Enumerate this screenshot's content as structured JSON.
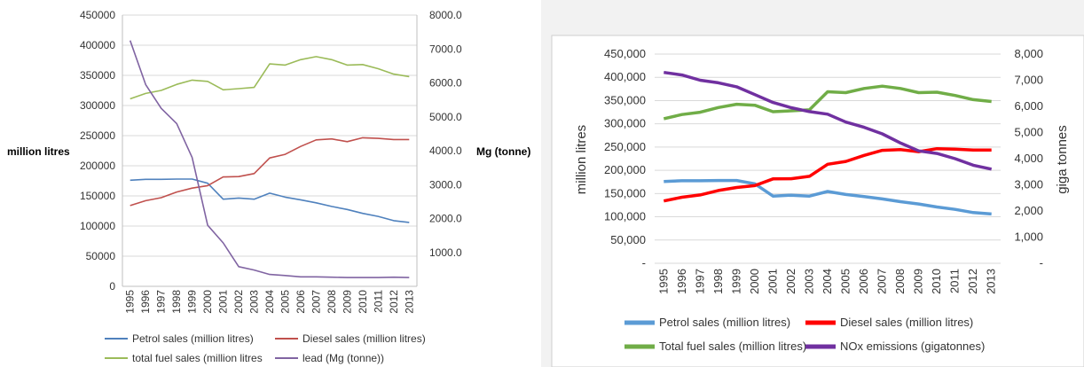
{
  "chart_data": [
    {
      "type": "line",
      "title": "",
      "x": [
        "1995",
        "1996",
        "1997",
        "1998",
        "1999",
        "2000",
        "2001",
        "2002",
        "2003",
        "2004",
        "2005",
        "2006",
        "2007",
        "2008",
        "2009",
        "2010",
        "2011",
        "2012",
        "2013"
      ],
      "ylabel": "million litres",
      "ylim": [
        0,
        450000
      ],
      "yticks": [
        "0",
        "50000",
        "100000",
        "150000",
        "200000",
        "250000",
        "300000",
        "350000",
        "400000",
        "450000"
      ],
      "y2label": "Mg (tonne)",
      "y2lim": [
        0,
        8000
      ],
      "y2ticks": [
        "",
        "1000.0",
        "2000.0",
        "3000.0",
        "4000.0",
        "5000.0",
        "6000.0",
        "7000.0",
        "8000.0"
      ],
      "grid": true,
      "legend_position": "bottom",
      "series": [
        {
          "name": "Petrol sales (million litres)",
          "axis": "left",
          "color": "#4f81bd",
          "values": [
            176000,
            177500,
            177500,
            178000,
            178000,
            171000,
            144500,
            146500,
            144500,
            154500,
            148000,
            143500,
            138500,
            132500,
            127500,
            121000,
            116000,
            109000,
            106000
          ]
        },
        {
          "name": "Diesel sales (million litres)",
          "axis": "left",
          "color": "#c0504d",
          "values": [
            134000,
            142000,
            147000,
            156500,
            163000,
            167000,
            181500,
            182000,
            187000,
            213000,
            219000,
            232000,
            243000,
            244500,
            240000,
            246500,
            245500,
            243500,
            243500
          ]
        },
        {
          "name": "total fuel sales (million litres",
          "axis": "left",
          "color": "#9bbb59",
          "values": [
            311000,
            320000,
            325000,
            335000,
            342000,
            340000,
            326000,
            328000,
            330000,
            369000,
            367000,
            376000,
            381000,
            376000,
            367000,
            368000,
            361000,
            352000,
            348000
          ]
        },
        {
          "name": "lead (Mg (tonne))",
          "axis": "right",
          "color": "#8064a2",
          "values": [
            7250,
            5950,
            5250,
            4800,
            3800,
            1800,
            1280,
            580,
            480,
            350,
            320,
            280,
            280,
            270,
            260,
            260,
            260,
            270,
            260
          ]
        }
      ]
    },
    {
      "type": "line",
      "title": "",
      "x": [
        "1995",
        "1996",
        "1997",
        "1998",
        "1999",
        "2000",
        "2001",
        "2002",
        "2003",
        "2004",
        "2005",
        "2006",
        "2007",
        "2008",
        "2009",
        "2010",
        "2011",
        "2012",
        "2013"
      ],
      "ylabel": "million litres",
      "ylim": [
        0,
        450000
      ],
      "yticks": [
        "-",
        "50,000",
        "100,000",
        "150,000",
        "200,000",
        "250,000",
        "300,000",
        "350,000",
        "400,000",
        "450,000"
      ],
      "y2label": "giga tonnes",
      "y2lim": [
        0,
        8000
      ],
      "y2ticks": [
        "-",
        "1,000",
        "2,000",
        "3,000",
        "4,000",
        "5,000",
        "6,000",
        "7,000",
        "8,000"
      ],
      "grid": true,
      "legend_position": "bottom",
      "series": [
        {
          "name": "Petrol sales (million litres)",
          "axis": "left",
          "color": "#5b9bd5",
          "values": [
            176000,
            177500,
            177500,
            178000,
            178000,
            171000,
            144500,
            146500,
            144500,
            154500,
            148000,
            143500,
            138500,
            132500,
            127500,
            121000,
            116000,
            109000,
            106000
          ]
        },
        {
          "name": "Diesel sales (million litres)",
          "axis": "left",
          "color": "#ff0000",
          "values": [
            134000,
            142000,
            147000,
            156500,
            163000,
            167000,
            181500,
            182000,
            187000,
            213000,
            219000,
            232000,
            243000,
            244500,
            240000,
            246500,
            245500,
            243500,
            243500
          ]
        },
        {
          "name": "Total fuel sales (million litres)",
          "axis": "left",
          "color": "#70ad47",
          "values": [
            311000,
            320000,
            325000,
            335000,
            342000,
            340000,
            326000,
            328000,
            330000,
            369000,
            367000,
            376000,
            381000,
            376000,
            367000,
            368000,
            361000,
            352000,
            348000
          ]
        },
        {
          "name": "NOx emissions (gigatonnes)",
          "axis": "right",
          "color": "#7030a0",
          "values": [
            7300,
            7200,
            7000,
            6900,
            6750,
            6450,
            6150,
            5950,
            5800,
            5700,
            5400,
            5200,
            4950,
            4600,
            4300,
            4200,
            4000,
            3750,
            3600
          ]
        }
      ]
    }
  ]
}
